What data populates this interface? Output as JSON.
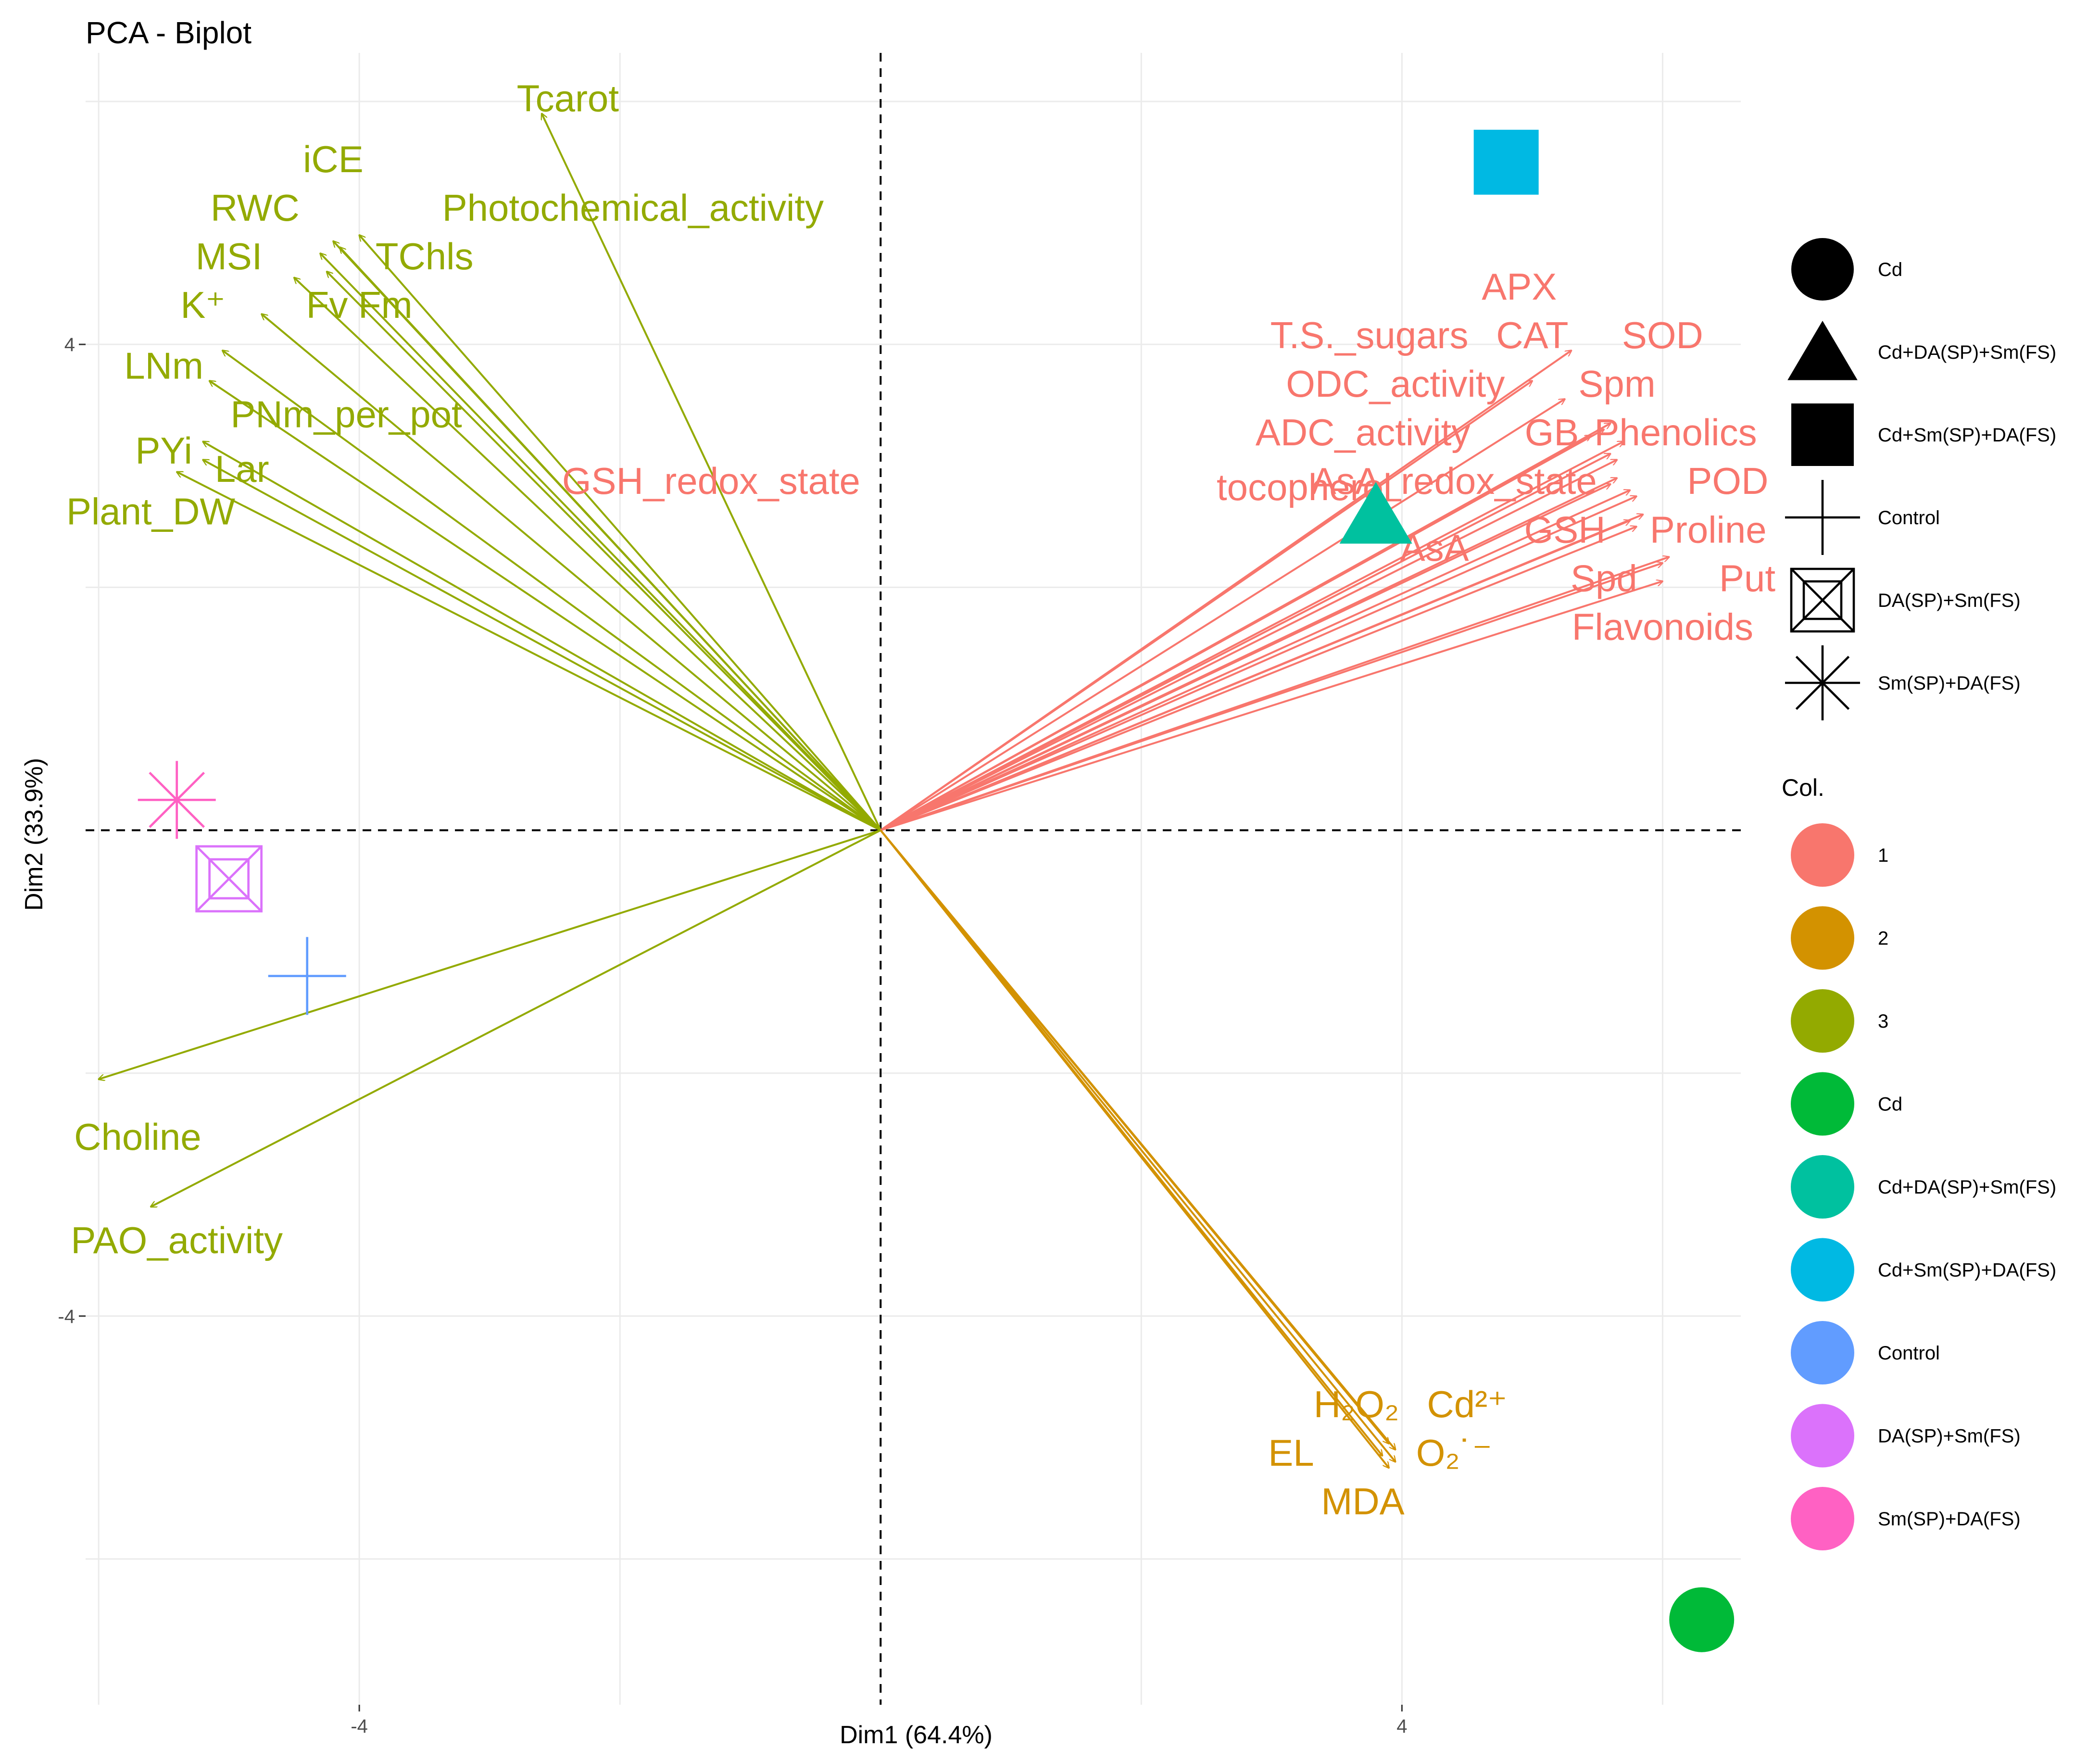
{
  "chart_data": {
    "type": "scatter",
    "title": "PCA - Biplot",
    "xlabel": "Dim1 (64.4%)",
    "ylabel": "Dim2 (33.9%)",
    "xlim": [
      -6.1,
      6.6
    ],
    "ylim": [
      -7.2,
      6.4
    ],
    "xticks": [
      -4,
      4
    ],
    "yticks": [
      -4,
      4
    ],
    "xtick_labels": [
      "-4",
      "4"
    ],
    "ytick_labels": [
      "-4",
      "4"
    ],
    "colors": {
      "1": "#F8766D",
      "2": "#D39200",
      "3": "#93AA00",
      "Cd": "#00BA38",
      "Cd+DA(SP)+Sm(FS)": "#00C19F",
      "Cd+Sm(SP)+DA(FS)": "#00B9E3",
      "Control": "#619CFF",
      "DA(SP)+Sm(FS)": "#DB72FB",
      "Sm(SP)+DA(FS)": "#FF61C3"
    },
    "individuals": [
      {
        "name": "Cd",
        "x": 6.3,
        "y": -6.5,
        "shape": "circle"
      },
      {
        "name": "Cd+DA(SP)+Sm(FS)",
        "x": 3.8,
        "y": 2.6,
        "shape": "triangle"
      },
      {
        "name": "Cd+Sm(SP)+DA(FS)",
        "x": 4.8,
        "y": 5.5,
        "shape": "square"
      },
      {
        "name": "Control",
        "x": -4.4,
        "y": -1.2,
        "shape": "plus"
      },
      {
        "name": "DA(SP)+Sm(FS)",
        "x": -5.0,
        "y": -0.4,
        "shape": "boxed-x"
      },
      {
        "name": "Sm(SP)+DA(FS)",
        "x": -5.4,
        "y": 0.25,
        "shape": "asterisk"
      }
    ],
    "variables": [
      {
        "name": "Tcarot",
        "col": "3",
        "x": -2.6,
        "y": 5.9,
        "lx": -2.4,
        "ly": 6.0
      },
      {
        "name": "iCE",
        "col": "3",
        "x": -4.2,
        "y": 4.85,
        "lx": -4.2,
        "ly": 5.5
      },
      {
        "name": "Photochemical_activity",
        "col": "3",
        "x": -4.0,
        "y": 4.9,
        "lx": -1.9,
        "ly": 5.1
      },
      {
        "name": "RWC",
        "col": "3",
        "x": -4.3,
        "y": 4.75,
        "lx": -4.8,
        "ly": 5.1
      },
      {
        "name": "TChls",
        "col": "3",
        "x": -4.15,
        "y": 4.8,
        "lx": -3.5,
        "ly": 4.7
      },
      {
        "name": "MSI",
        "col": "3",
        "x": -4.5,
        "y": 4.55,
        "lx": -5.0,
        "ly": 4.7
      },
      {
        "name": "Fv Fm",
        "col": "3",
        "x": -4.25,
        "y": 4.6,
        "lx": -4.0,
        "ly": 4.3
      },
      {
        "name": "K⁺",
        "col": "3",
        "x": -4.75,
        "y": 4.25,
        "lx": -5.2,
        "ly": 4.3
      },
      {
        "name": "LNm",
        "col": "3",
        "x": -5.05,
        "y": 3.95,
        "lx": -5.5,
        "ly": 3.8
      },
      {
        "name": "PNm_per_pot",
        "col": "3",
        "x": -5.15,
        "y": 3.7,
        "lx": -4.1,
        "ly": 3.4
      },
      {
        "name": "PYi",
        "col": "3",
        "x": -5.2,
        "y": 3.2,
        "lx": -5.5,
        "ly": 3.1
      },
      {
        "name": "Lar",
        "col": "3",
        "x": -5.2,
        "y": 3.05,
        "lx": -4.9,
        "ly": 2.95
      },
      {
        "name": "Plant_DW",
        "col": "3",
        "x": -5.4,
        "y": 2.95,
        "lx": -5.6,
        "ly": 2.6
      },
      {
        "name": "Choline",
        "col": "3",
        "x": -6.0,
        "y": -2.05,
        "lx": -5.7,
        "ly": -2.55
      },
      {
        "name": "PAO_activity",
        "col": "3",
        "x": -5.6,
        "y": -3.1,
        "lx": -5.4,
        "ly": -3.4
      },
      {
        "name": "APX",
        "col": "1",
        "x": 5.3,
        "y": 3.95,
        "lx": 4.9,
        "ly": 4.45
      },
      {
        "name": "T.S._sugars",
        "col": "1",
        "x": 5.25,
        "y": 3.55,
        "lx": 3.75,
        "ly": 4.05
      },
      {
        "name": "CAT",
        "col": "1",
        "x": 5.55,
        "y": 3.3,
        "lx": 5.0,
        "ly": 4.05
      },
      {
        "name": "SOD",
        "col": "1",
        "x": 5.6,
        "y": 3.35,
        "lx": 6.0,
        "ly": 4.05
      },
      {
        "name": "ODC_activity",
        "col": "1",
        "x": 5.0,
        "y": 3.7,
        "lx": 3.95,
        "ly": 3.65
      },
      {
        "name": "Spm",
        "col": "1",
        "x": 5.45,
        "y": 3.25,
        "lx": 5.65,
        "ly": 3.65
      },
      {
        "name": "ADC_activity",
        "col": "1",
        "x": 5.6,
        "y": 3.1,
        "lx": 3.7,
        "ly": 3.25
      },
      {
        "name": "GB",
        "col": "1",
        "x": 5.65,
        "y": 3.05,
        "lx": 5.15,
        "ly": 3.25
      },
      {
        "name": "Phenolics",
        "col": "1",
        "x": 5.7,
        "y": 3.2,
        "lx": 6.1,
        "ly": 3.25
      },
      {
        "name": "GSH_redox_state",
        "col": "1",
        "x": 5.6,
        "y": 2.85,
        "lx": -1.3,
        "ly": 2.85
      },
      {
        "name": "tocopherol",
        "col": "1",
        "x": 5.65,
        "y": 2.9,
        "lx": 3.25,
        "ly": 2.8
      },
      {
        "name": "AsA_redox_state",
        "col": "1",
        "x": 5.75,
        "y": 2.8,
        "lx": 4.4,
        "ly": 2.85
      },
      {
        "name": "POD",
        "col": "1",
        "x": 5.8,
        "y": 2.75,
        "lx": 6.5,
        "ly": 2.85
      },
      {
        "name": "AsA",
        "col": "1",
        "x": 5.75,
        "y": 2.55,
        "lx": 4.25,
        "ly": 2.3
      },
      {
        "name": "GSH",
        "col": "1",
        "x": 5.8,
        "y": 2.5,
        "lx": 5.25,
        "ly": 2.45
      },
      {
        "name": "Proline",
        "col": "1",
        "x": 5.85,
        "y": 2.6,
        "lx": 6.35,
        "ly": 2.45
      },
      {
        "name": "Spd",
        "col": "1",
        "x": 6.0,
        "y": 2.2,
        "lx": 5.55,
        "ly": 2.05
      },
      {
        "name": "Put",
        "col": "1",
        "x": 6.05,
        "y": 2.25,
        "lx": 6.65,
        "ly": 2.05
      },
      {
        "name": "Flavonoids",
        "col": "1",
        "x": 6.0,
        "y": 2.05,
        "lx": 6.0,
        "ly": 1.65
      },
      {
        "name": "H₂O₂",
        "col": "2",
        "x": 3.9,
        "y": -5.05,
        "lx": 3.65,
        "ly": -4.75
      },
      {
        "name": "Cd²⁺",
        "col": "2",
        "x": 3.95,
        "y": -5.1,
        "lx": 4.5,
        "ly": -4.75
      },
      {
        "name": "EL",
        "col": "2",
        "x": 3.85,
        "y": -5.15,
        "lx": 3.15,
        "ly": -5.15
      },
      {
        "name": "O₂˙⁻",
        "col": "2",
        "x": 3.95,
        "y": -5.2,
        "lx": 4.4,
        "ly": -5.15
      },
      {
        "name": "MDA",
        "col": "2",
        "x": 3.9,
        "y": -5.25,
        "lx": 3.7,
        "ly": -5.55
      }
    ],
    "legend_shape": {
      "items": [
        {
          "label": "Cd",
          "shape": "circle"
        },
        {
          "label": "Cd+DA(SP)+Sm(FS)",
          "shape": "triangle"
        },
        {
          "label": "Cd+Sm(SP)+DA(FS)",
          "shape": "square"
        },
        {
          "label": "Control",
          "shape": "plus"
        },
        {
          "label": "DA(SP)+Sm(FS)",
          "shape": "boxed-x"
        },
        {
          "label": "Sm(SP)+DA(FS)",
          "shape": "asterisk"
        }
      ]
    },
    "legend_color": {
      "title": "Col.",
      "items": [
        "1",
        "2",
        "3",
        "Cd",
        "Cd+DA(SP)+Sm(FS)",
        "Cd+Sm(SP)+DA(FS)",
        "Control",
        "DA(SP)+Sm(FS)",
        "Sm(SP)+DA(FS)"
      ]
    }
  }
}
